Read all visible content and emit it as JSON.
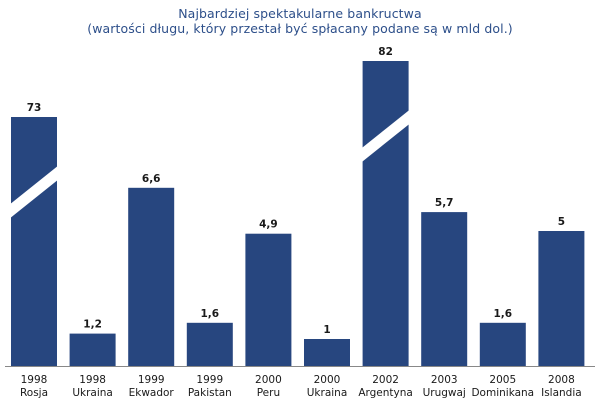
{
  "chart_data": {
    "type": "bar",
    "title": "Najbardziej spektakularne bankructwa",
    "subtitle": "(wartości długu, który przestał być spłacany podane są w mld dol.)",
    "xlabel": "",
    "ylabel": "",
    "categories": [
      {
        "year": "1998",
        "country": "Rosja"
      },
      {
        "year": "1998",
        "country": "Ukraina"
      },
      {
        "year": "1999",
        "country": "Ekwador"
      },
      {
        "year": "1999",
        "country": "Pakistan"
      },
      {
        "year": "2000",
        "country": "Peru"
      },
      {
        "year": "2000",
        "country": "Ukraina"
      },
      {
        "year": "2002",
        "country": "Argentyna"
      },
      {
        "year": "2003",
        "country": "Urugwaj"
      },
      {
        "year": "2005",
        "country": "Dominikana"
      },
      {
        "year": "2008",
        "country": "Islandia"
      }
    ],
    "values": [
      73,
      1.2,
      6.6,
      1.6,
      4.9,
      1,
      82,
      5.7,
      1.6,
      5
    ],
    "value_labels": [
      "73",
      "1,2",
      "6,6",
      "1,6",
      "4,9",
      "1",
      "82",
      "5,7",
      "1,6",
      "5"
    ],
    "broken_bars": [
      0,
      6
    ],
    "grid": false,
    "legend": "none",
    "bar_color": "#27467f",
    "title_color": "#2d4f8a"
  }
}
